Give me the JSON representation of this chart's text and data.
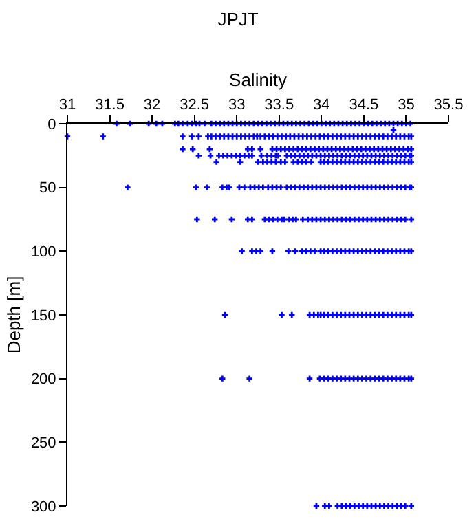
{
  "chart_data": {
    "type": "scatter",
    "title": "JPJT",
    "xlabel": "Salinity",
    "ylabel": "Depth [m]",
    "xlim": [
      31,
      35.5
    ],
    "xticks": [
      31,
      31.5,
      32,
      32.5,
      33,
      33.5,
      34,
      34.5,
      35,
      35.5
    ],
    "ylim": [
      300,
      0
    ],
    "yticks": [
      0,
      50,
      100,
      150,
      200,
      250,
      300
    ],
    "marker": "cross",
    "series": [
      {
        "color": "#0000ff",
        "x": [
          31.58,
          31.74,
          31.96,
          32.05,
          32.12,
          32.27,
          32.31,
          32.36,
          32.42,
          32.47,
          32.52,
          32.56,
          32.62,
          32.7,
          32.75,
          32.8,
          32.85,
          32.9,
          32.95,
          33.0,
          33.05,
          33.1,
          33.15,
          33.2,
          33.25,
          33.3,
          33.35,
          33.4,
          33.45,
          33.5,
          33.55,
          33.6,
          33.65,
          33.7,
          33.75,
          33.8,
          33.85,
          33.9,
          33.95,
          34.0,
          34.05,
          34.1,
          34.15,
          34.2,
          34.25,
          34.3,
          34.35,
          34.4,
          34.45,
          34.5,
          34.55,
          34.6,
          34.65,
          34.7,
          34.75,
          34.8,
          34.85,
          34.9,
          34.95,
          35.0,
          35.05
        ],
        "values": [
          0,
          0,
          0,
          0,
          0,
          0,
          0,
          0,
          0,
          0,
          0,
          0,
          0,
          0,
          0,
          0,
          0,
          0,
          0,
          0,
          0,
          0,
          0,
          0,
          0,
          0,
          0,
          0,
          0,
          0,
          0,
          0,
          0,
          0,
          0,
          0,
          0,
          0,
          0,
          0,
          0,
          0,
          0,
          0,
          0,
          0,
          0,
          0,
          0,
          0,
          0,
          0,
          0,
          0,
          0,
          0,
          0,
          0,
          0,
          0,
          0
        ]
      },
      {
        "color": "#0000ff",
        "x": [
          34.85
        ],
        "values": [
          5
        ]
      },
      {
        "color": "#0000ff",
        "x": [
          31.0,
          31.42,
          32.36,
          32.47,
          32.55,
          32.66,
          32.7,
          32.75,
          32.8,
          32.85,
          32.9,
          32.95,
          33.0,
          33.05,
          33.1,
          33.15,
          33.2,
          33.24,
          33.28,
          33.33,
          33.38,
          33.43,
          33.48,
          33.53,
          33.58,
          33.63,
          33.68,
          33.73,
          33.78,
          33.83,
          33.88,
          33.93,
          33.98,
          34.03,
          34.08,
          34.13,
          34.18,
          34.23,
          34.28,
          34.33,
          34.38,
          34.43,
          34.48,
          34.53,
          34.58,
          34.63,
          34.68,
          34.73,
          34.78,
          34.83,
          34.88,
          34.93,
          34.98,
          35.03,
          35.06
        ],
        "values": [
          10,
          10,
          10,
          10,
          10,
          10,
          10,
          10,
          10,
          10,
          10,
          10,
          10,
          10,
          10,
          10,
          10,
          10,
          10,
          10,
          10,
          10,
          10,
          10,
          10,
          10,
          10,
          10,
          10,
          10,
          10,
          10,
          10,
          10,
          10,
          10,
          10,
          10,
          10,
          10,
          10,
          10,
          10,
          10,
          10,
          10,
          10,
          10,
          10,
          10,
          10,
          10,
          10,
          10,
          10
        ]
      },
      {
        "color": "#0000ff",
        "x": [
          32.36,
          32.48,
          32.68,
          33.13,
          33.18,
          33.28,
          33.42,
          33.47,
          33.52,
          33.57,
          33.62,
          33.67,
          33.72,
          33.77,
          33.82,
          33.87,
          33.92,
          33.97,
          34.02,
          34.07,
          34.12,
          34.17,
          34.22,
          34.27,
          34.32,
          34.37,
          34.42,
          34.47,
          34.52,
          34.57,
          34.62,
          34.67,
          34.72,
          34.77,
          34.82,
          34.87,
          34.92,
          34.97,
          35.02,
          35.06
        ],
        "values": [
          20,
          20,
          20,
          20,
          20,
          20,
          20,
          20,
          20,
          20,
          20,
          20,
          20,
          20,
          20,
          20,
          20,
          20,
          20,
          20,
          20,
          20,
          20,
          20,
          20,
          20,
          20,
          20,
          20,
          20,
          20,
          20,
          20,
          20,
          20,
          20,
          20,
          20,
          20,
          20
        ]
      },
      {
        "color": "#0000ff",
        "x": [
          32.55,
          32.69,
          32.79,
          32.84,
          32.89,
          32.94,
          32.99,
          33.04,
          33.09,
          33.14,
          33.18,
          33.29,
          33.36,
          33.41,
          33.46,
          33.49,
          33.59,
          33.64,
          33.69,
          33.74,
          33.79,
          33.84,
          33.89,
          33.94,
          33.99,
          34.04,
          34.09,
          34.14,
          34.19,
          34.24,
          34.29,
          34.34,
          34.39,
          34.44,
          34.49,
          34.54,
          34.59,
          34.64,
          34.69,
          34.74,
          34.79,
          34.84,
          34.89,
          34.94,
          34.99,
          35.04,
          35.06
        ],
        "values": [
          25,
          25,
          25,
          25,
          25,
          25,
          25,
          25,
          25,
          25,
          25,
          25,
          25,
          25,
          25,
          25,
          25,
          25,
          25,
          25,
          25,
          25,
          25,
          25,
          25,
          25,
          25,
          25,
          25,
          25,
          25,
          25,
          25,
          25,
          25,
          25,
          25,
          25,
          25,
          25,
          25,
          25,
          25,
          25,
          25,
          25,
          25
        ]
      },
      {
        "color": "#0000ff",
        "x": [
          32.76,
          33.04,
          33.25,
          33.31,
          33.36,
          33.41,
          33.46,
          33.52,
          33.57,
          33.67,
          33.72,
          33.77,
          33.82,
          33.88,
          33.99,
          34.03,
          34.08,
          34.13,
          34.18,
          34.23,
          34.28,
          34.33,
          34.38,
          34.43,
          34.48,
          34.53,
          34.58,
          34.63,
          34.68,
          34.73,
          34.78,
          34.83,
          34.88,
          34.93,
          34.98,
          35.03,
          35.06
        ],
        "values": [
          30,
          30,
          30,
          30,
          30,
          30,
          30,
          30,
          30,
          30,
          30,
          30,
          30,
          30,
          30,
          30,
          30,
          30,
          30,
          30,
          30,
          30,
          30,
          30,
          30,
          30,
          30,
          30,
          30,
          30,
          30,
          30,
          30,
          30,
          30,
          30,
          30
        ]
      },
      {
        "color": "#0000ff",
        "x": [
          31.71,
          32.52,
          32.65,
          32.83,
          32.88,
          32.91,
          33.03,
          33.09,
          33.16,
          33.21,
          33.26,
          33.31,
          33.37,
          33.42,
          33.47,
          33.52,
          33.59,
          33.64,
          33.69,
          33.74,
          33.79,
          33.84,
          33.89,
          33.94,
          33.99,
          34.04,
          34.09,
          34.14,
          34.19,
          34.24,
          34.29,
          34.34,
          34.39,
          34.44,
          34.49,
          34.54,
          34.59,
          34.64,
          34.69,
          34.74,
          34.79,
          34.84,
          34.89,
          34.94,
          34.99,
          35.04,
          35.06
        ],
        "values": [
          50,
          50,
          50,
          50,
          50,
          50,
          50,
          50,
          50,
          50,
          50,
          50,
          50,
          50,
          50,
          50,
          50,
          50,
          50,
          50,
          50,
          50,
          50,
          50,
          50,
          50,
          50,
          50,
          50,
          50,
          50,
          50,
          50,
          50,
          50,
          50,
          50,
          50,
          50,
          50,
          50,
          50,
          50,
          50,
          50,
          50,
          50
        ]
      },
      {
        "color": "#0000ff",
        "x": [
          32.53,
          32.74,
          32.94,
          33.13,
          33.18,
          33.33,
          33.38,
          33.43,
          33.48,
          33.53,
          33.56,
          33.62,
          33.66,
          33.7,
          33.78,
          33.84,
          33.89,
          33.94,
          33.99,
          34.04,
          34.09,
          34.14,
          34.19,
          34.24,
          34.29,
          34.34,
          34.39,
          34.44,
          34.49,
          34.54,
          34.59,
          34.64,
          34.69,
          34.74,
          34.79,
          34.84,
          34.89,
          34.94,
          34.99,
          35.06
        ],
        "values": [
          75,
          75,
          75,
          75,
          75,
          75,
          75,
          75,
          75,
          75,
          75,
          75,
          75,
          75,
          75,
          75,
          75,
          75,
          75,
          75,
          75,
          75,
          75,
          75,
          75,
          75,
          75,
          75,
          75,
          75,
          75,
          75,
          75,
          75,
          75,
          75,
          75,
          75,
          75,
          75
        ]
      },
      {
        "color": "#0000ff",
        "x": [
          33.06,
          33.18,
          33.23,
          33.28,
          33.42,
          33.61,
          33.69,
          33.77,
          33.82,
          33.87,
          33.92,
          33.99,
          34.03,
          34.08,
          34.13,
          34.18,
          34.23,
          34.28,
          34.33,
          34.38,
          34.43,
          34.48,
          34.53,
          34.58,
          34.63,
          34.68,
          34.73,
          34.78,
          34.83,
          34.88,
          34.93,
          34.98,
          35.03,
          35.06
        ],
        "values": [
          100,
          100,
          100,
          100,
          100,
          100,
          100,
          100,
          100,
          100,
          100,
          100,
          100,
          100,
          100,
          100,
          100,
          100,
          100,
          100,
          100,
          100,
          100,
          100,
          100,
          100,
          100,
          100,
          100,
          100,
          100,
          100,
          100,
          100
        ]
      },
      {
        "color": "#0000ff",
        "x": [
          32.86,
          33.53,
          33.65,
          33.86,
          33.91,
          33.96,
          33.99,
          34.03,
          34.08,
          34.13,
          34.18,
          34.23,
          34.28,
          34.33,
          34.38,
          34.43,
          34.48,
          34.53,
          34.58,
          34.63,
          34.68,
          34.73,
          34.78,
          34.83,
          34.88,
          34.93,
          34.98,
          35.03,
          35.06
        ],
        "values": [
          150,
          150,
          150,
          150,
          150,
          150,
          150,
          150,
          150,
          150,
          150,
          150,
          150,
          150,
          150,
          150,
          150,
          150,
          150,
          150,
          150,
          150,
          150,
          150,
          150,
          150,
          150,
          150,
          150
        ]
      },
      {
        "color": "#0000ff",
        "x": [
          32.83,
          33.15,
          33.86,
          33.98,
          34.03,
          34.08,
          34.13,
          34.18,
          34.23,
          34.28,
          34.33,
          34.38,
          34.43,
          34.48,
          34.53,
          34.58,
          34.63,
          34.68,
          34.73,
          34.78,
          34.83,
          34.88,
          34.93,
          34.98,
          35.03,
          35.06
        ],
        "values": [
          200,
          200,
          200,
          200,
          200,
          200,
          200,
          200,
          200,
          200,
          200,
          200,
          200,
          200,
          200,
          200,
          200,
          200,
          200,
          200,
          200,
          200,
          200,
          200,
          200,
          200
        ]
      },
      {
        "color": "#0000ff",
        "x": [
          33.94,
          34.04,
          34.09,
          34.19,
          34.24,
          34.29,
          34.34,
          34.39,
          34.44,
          34.49,
          34.54,
          34.59,
          34.64,
          34.69,
          34.74,
          34.79,
          34.84,
          34.89,
          34.94,
          34.99,
          35.06
        ],
        "values": [
          300,
          300,
          300,
          300,
          300,
          300,
          300,
          300,
          300,
          300,
          300,
          300,
          300,
          300,
          300,
          300,
          300,
          300,
          300,
          300,
          300
        ]
      }
    ]
  }
}
